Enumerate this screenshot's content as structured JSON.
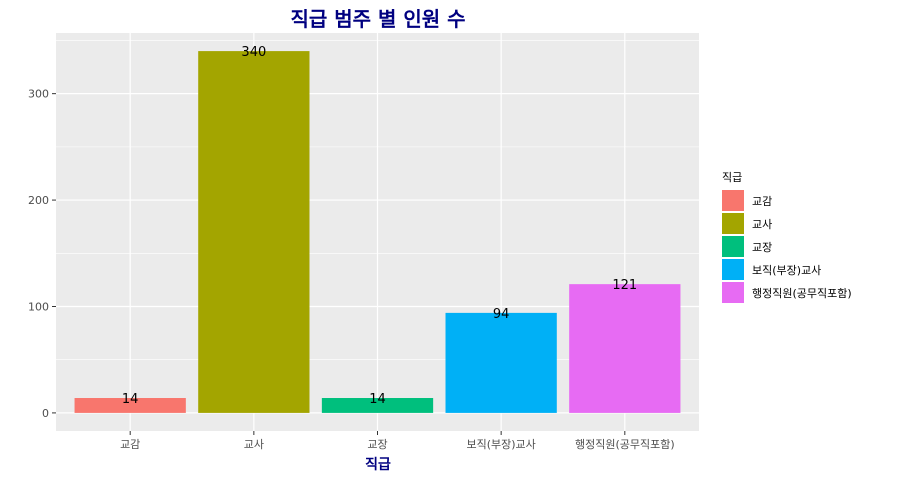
{
  "chart_data": {
    "type": "bar",
    "title": "직급 범주 별 인원 수",
    "xlabel": "직급",
    "ylabel": "",
    "categories": [
      "교감",
      "교사",
      "교장",
      "보직(부장)교사",
      "행정직원(공무직포함)"
    ],
    "values": [
      14,
      340,
      14,
      94,
      121
    ],
    "data_labels": [
      "14",
      "340",
      "14",
      "94",
      "121"
    ],
    "colors": [
      "#F8766D",
      "#A3A500",
      "#00BF7D",
      "#00B0F6",
      "#E76BF3"
    ],
    "y_ticks": [
      0,
      100,
      200,
      300
    ],
    "ylim": [
      -17,
      357
    ],
    "grid": true,
    "legend": {
      "title": "직급",
      "placement": "right",
      "entries": [
        "교감",
        "교사",
        "교장",
        "보직(부장)교사",
        "행정직원(공무직포함)"
      ]
    }
  }
}
